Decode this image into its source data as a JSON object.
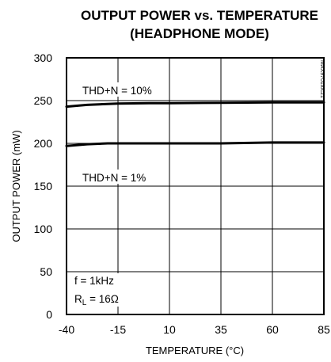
{
  "chart_data": {
    "type": "line",
    "title": "OUTPUT POWER vs. TEMPERATURE",
    "subtitle": "(HEADPHONE MODE)",
    "xlabel": "TEMPERATURE (°C)",
    "ylabel": "OUTPUT POWER (mW)",
    "xlim": [
      -40,
      85
    ],
    "ylim": [
      0,
      300
    ],
    "x_ticks": [
      -40,
      -15,
      10,
      35,
      60,
      85
    ],
    "y_ticks": [
      0,
      50,
      100,
      150,
      200,
      250,
      300
    ],
    "x_tick_labels": [
      "-40",
      "-15",
      "10",
      "35",
      "60",
      "85"
    ],
    "y_tick_labels": [
      "0",
      "50",
      "100",
      "150",
      "200",
      "250",
      "300"
    ],
    "grid": true,
    "series": [
      {
        "name": "THD+N = 10%",
        "x": [
          -40,
          -30,
          -20,
          -15,
          0,
          10,
          35,
          60,
          85
        ],
        "y": [
          243,
          245,
          246,
          246.5,
          247,
          247,
          247.5,
          248,
          248
        ]
      },
      {
        "name": "THD+N = 1%",
        "x": [
          -40,
          -30,
          -20,
          -15,
          0,
          10,
          35,
          60,
          85
        ],
        "y": [
          197,
          199,
          200,
          200,
          200,
          200,
          200,
          201,
          201
        ]
      }
    ],
    "annotations": {
      "freq": "f = 1kHz",
      "load_prefix": "R",
      "load_sub": "L",
      "load_suffix": " = 16Ω"
    },
    "watermark": "MAX9701toc21",
    "line_color": "#000000"
  }
}
